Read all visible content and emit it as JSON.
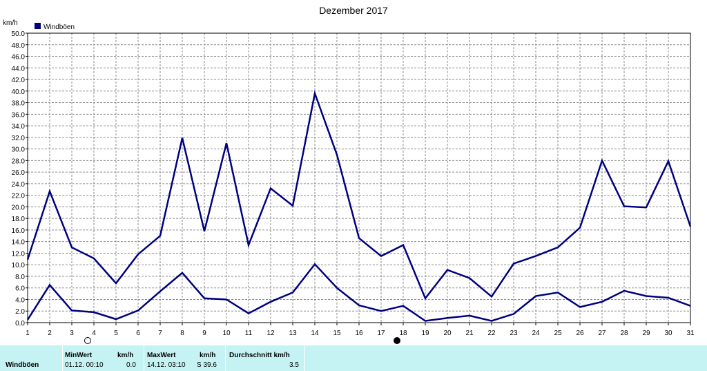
{
  "chart_data": {
    "type": "line",
    "title": "Dezember 2017",
    "ylabel": "km/h",
    "ylim": [
      0,
      50
    ],
    "yticks": [
      "0.0",
      "2.0",
      "4.0",
      "6.0",
      "8.0",
      "10.0",
      "12.0",
      "14.0",
      "16.0",
      "18.0",
      "20.0",
      "22.0",
      "24.0",
      "26.0",
      "28.0",
      "30.0",
      "32.0",
      "34.0",
      "36.0",
      "38.0",
      "40.0",
      "42.0",
      "44.0",
      "46.0",
      "48.0",
      "50.0"
    ],
    "x": [
      "1",
      "2",
      "3",
      "4",
      "5",
      "6",
      "7",
      "8",
      "9",
      "10",
      "11",
      "12",
      "13",
      "14",
      "15",
      "16",
      "17",
      "18",
      "19",
      "20",
      "21",
      "22",
      "23",
      "24",
      "25",
      "26",
      "27",
      "28",
      "29",
      "30",
      "31"
    ],
    "grid": true,
    "legend": "top-left",
    "legend_label": "Windböen",
    "series": [
      {
        "name": "Windböen",
        "role": "max",
        "values": [
          10.9,
          22.7,
          13.0,
          11.1,
          6.8,
          11.8,
          15.0,
          31.9,
          15.8,
          31.0,
          13.4,
          23.2,
          20.2,
          39.6,
          29.0,
          14.6,
          11.5,
          13.4,
          4.2,
          9.1,
          7.7,
          4.5,
          10.2,
          11.5,
          13.0,
          16.4,
          28.0,
          20.1,
          19.9,
          27.9,
          16.6
        ]
      },
      {
        "name": "Windböen",
        "role": "avg",
        "values": [
          0.5,
          6.5,
          2.1,
          1.8,
          0.6,
          2.1,
          5.4,
          8.6,
          4.2,
          4.0,
          1.6,
          3.6,
          5.2,
          10.1,
          6.0,
          3.0,
          2.0,
          2.9,
          0.3,
          0.8,
          1.2,
          0.3,
          1.5,
          4.6,
          5.2,
          2.7,
          3.6,
          5.5,
          4.6,
          4.3,
          2.9
        ]
      }
    ],
    "colors": {
      "line": "#000080",
      "grid": "#8c8c8c",
      "axis": "#000000"
    },
    "moon_phases": [
      {
        "day": 4,
        "phase": "full-moon-icon"
      },
      {
        "day": 18,
        "phase": "new-moon-icon"
      }
    ]
  },
  "stats": {
    "row_label": "Windböen",
    "min_header": "MinWert",
    "min_unit": "km/h",
    "min_date": "01.12.  00:10",
    "min_value": "0.0",
    "max_header": "MaxWert",
    "max_unit": "km/h",
    "max_date": "14.12.  03:10",
    "max_value": "S 39.6",
    "avg_header": "Durchschnitt km/h",
    "avg_value": "3.5",
    "background": "#c5f2f2"
  }
}
